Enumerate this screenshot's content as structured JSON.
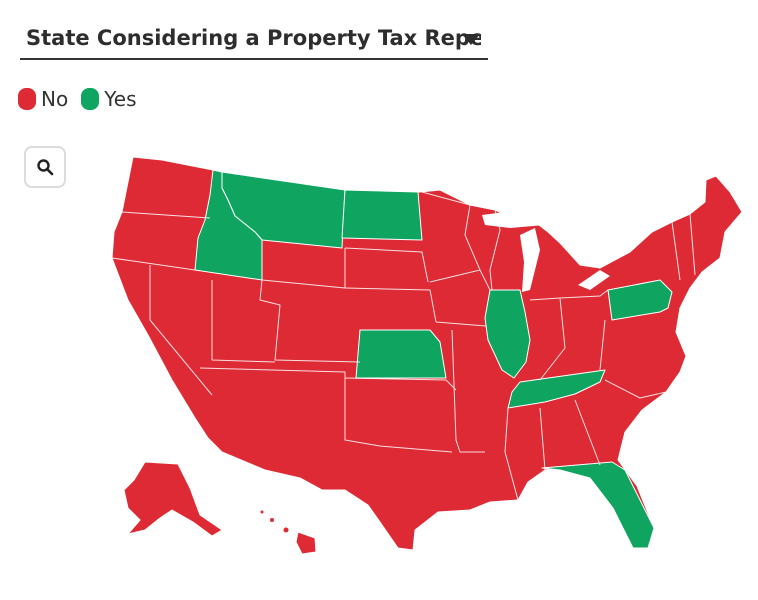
{
  "selector": {
    "label": "State Considering a Property Tax Repeal?"
  },
  "legend": [
    {
      "label": "No",
      "color": "#dd2a34"
    },
    {
      "label": "Yes",
      "color": "#0fa560"
    }
  ],
  "map": {
    "colors": {
      "no": "#dd2a34",
      "yes": "#0fa560",
      "border": "#ffffff"
    },
    "icons": {
      "zoom": "search-icon",
      "dropdown": "caret-down-icon"
    },
    "states_yes": [
      "Montana",
      "North Dakota",
      "Idaho",
      "Kansas",
      "Illinois",
      "Tennessee",
      "Pennsylvania",
      "Florida"
    ]
  }
}
